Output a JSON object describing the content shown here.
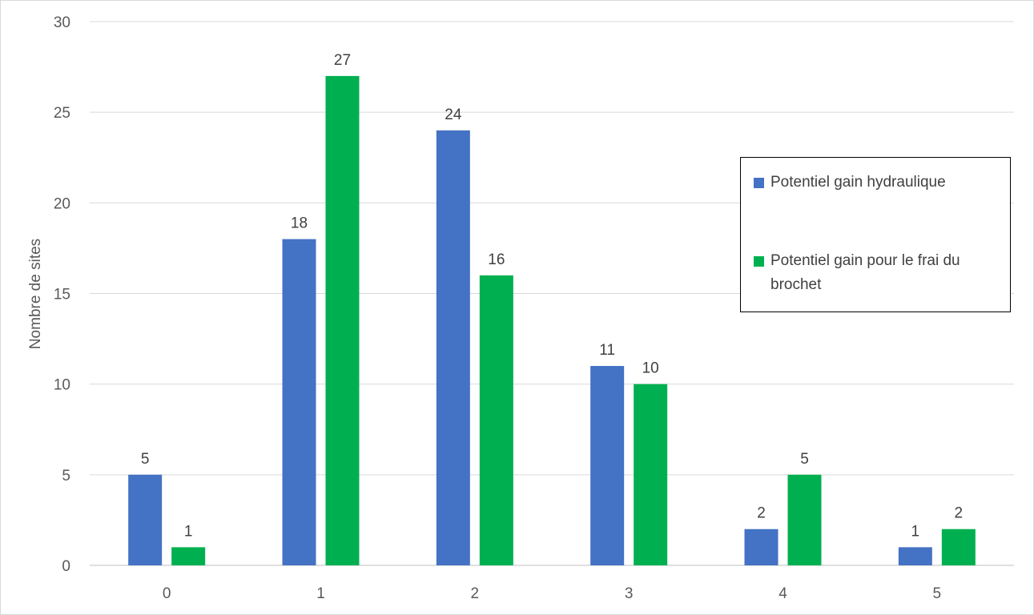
{
  "chart_data": {
    "type": "bar",
    "title": "",
    "xlabel": "",
    "ylabel": "Nombre de sites",
    "categories": [
      "0",
      "1",
      "2",
      "3",
      "4",
      "5"
    ],
    "series": [
      {
        "name": "Potentiel gain hydraulique",
        "color": "#4472c4",
        "values": [
          5,
          18,
          24,
          11,
          2,
          1
        ]
      },
      {
        "name": "Potentiel gain pour le frai du brochet",
        "color": "#00b050",
        "values": [
          1,
          27,
          16,
          10,
          5,
          2
        ]
      }
    ],
    "ylim": [
      0,
      30
    ],
    "yticks": [
      0,
      5,
      10,
      15,
      20,
      25,
      30
    ],
    "grid": true,
    "legend_position": "right"
  }
}
